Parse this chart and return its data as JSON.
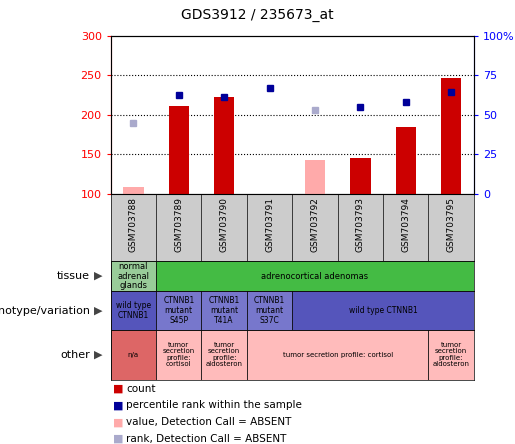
{
  "title": "GDS3912 / 235673_at",
  "samples": [
    "GSM703788",
    "GSM703789",
    "GSM703790",
    "GSM703791",
    "GSM703792",
    "GSM703793",
    "GSM703794",
    "GSM703795"
  ],
  "count_values": [
    null,
    211,
    222,
    null,
    null,
    145,
    184,
    246
  ],
  "count_absent_values": [
    108,
    null,
    null,
    null,
    142,
    null,
    null,
    null
  ],
  "percentile_values": [
    null,
    225,
    222,
    234,
    null,
    210,
    216,
    228
  ],
  "percentile_absent_values": [
    189,
    null,
    null,
    null,
    206,
    null,
    null,
    null
  ],
  "ylim": [
    100,
    300
  ],
  "y_ticks_left": [
    100,
    150,
    200,
    250,
    300
  ],
  "y_ticks_right": [
    0,
    25,
    50,
    75,
    100
  ],
  "dotted_lines": [
    150,
    200,
    250
  ],
  "bar_color": "#cc0000",
  "bar_absent_color": "#ffaaaa",
  "dot_color": "#000099",
  "dot_absent_color": "#aaaacc",
  "xlabels_bg": "#cccccc",
  "tissue_row": {
    "label": "tissue",
    "cells": [
      {
        "text": "normal\nadrenal\nglands",
        "color": "#99cc99",
        "span": 1
      },
      {
        "text": "adrenocortical adenomas",
        "color": "#44bb44",
        "span": 7
      }
    ]
  },
  "genotype_row": {
    "label": "genotype/variation",
    "cells": [
      {
        "text": "wild type\nCTNNB1",
        "color": "#5555bb",
        "span": 1
      },
      {
        "text": "CTNNB1\nmutant\nS45P",
        "color": "#7777cc",
        "span": 1
      },
      {
        "text": "CTNNB1\nmutant\nT41A",
        "color": "#7777cc",
        "span": 1
      },
      {
        "text": "CTNNB1\nmutant\nS37C",
        "color": "#7777cc",
        "span": 1
      },
      {
        "text": "wild type CTNNB1",
        "color": "#5555bb",
        "span": 4
      }
    ]
  },
  "other_row": {
    "label": "other",
    "cells": [
      {
        "text": "n/a",
        "color": "#dd6666",
        "span": 1
      },
      {
        "text": "tumor\nsecretion\nprofile:\ncortisol",
        "color": "#ffbbbb",
        "span": 1
      },
      {
        "text": "tumor\nsecretion\nprofile:\naldosteron",
        "color": "#ffbbbb",
        "span": 1
      },
      {
        "text": "tumor secretion profile: cortisol",
        "color": "#ffbbbb",
        "span": 4
      },
      {
        "text": "tumor\nsecretion\nprofile:\naldosteron",
        "color": "#ffbbbb",
        "span": 1
      }
    ]
  },
  "row_labels": [
    "tissue",
    "genotype/variation",
    "other"
  ],
  "legend_items": [
    {
      "label": "count",
      "color": "#cc0000"
    },
    {
      "label": "percentile rank within the sample",
      "color": "#000099"
    },
    {
      "label": "value, Detection Call = ABSENT",
      "color": "#ffaaaa"
    },
    {
      "label": "rank, Detection Call = ABSENT",
      "color": "#aaaacc"
    }
  ]
}
